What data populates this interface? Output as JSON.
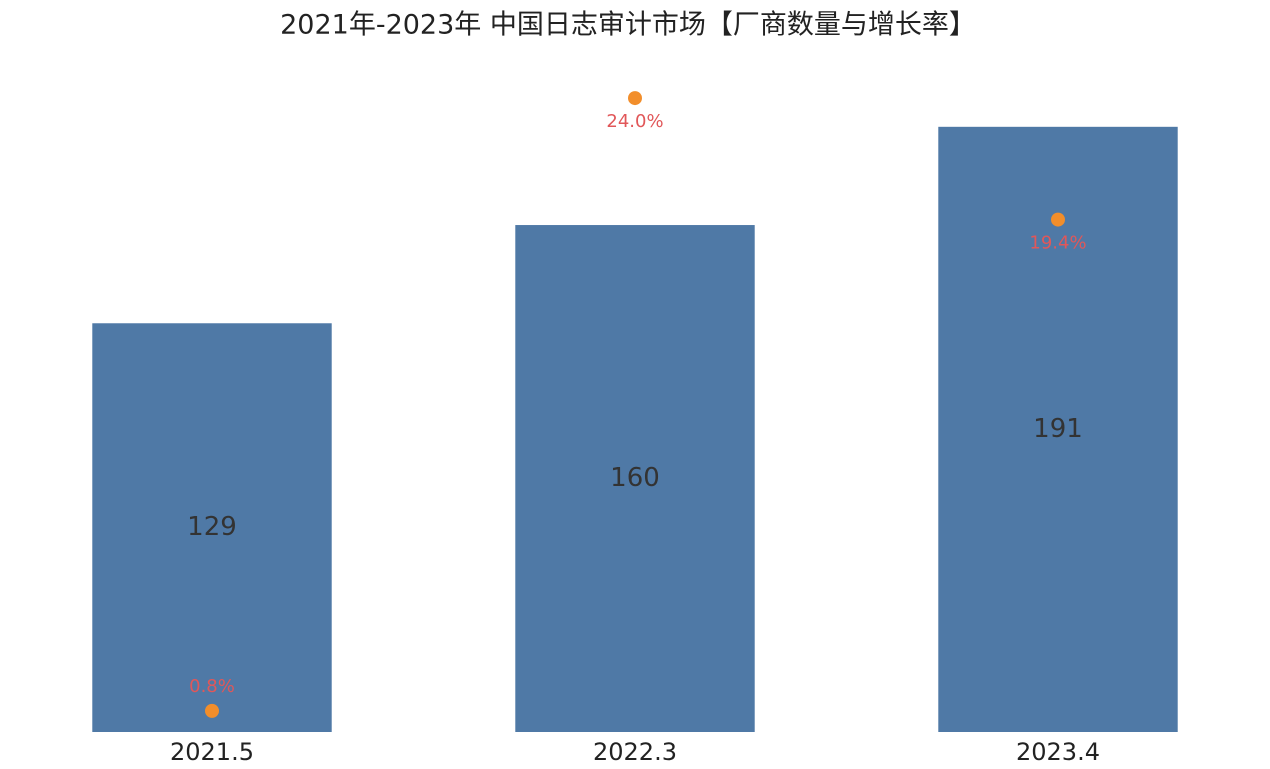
{
  "chart_data": {
    "type": "bar",
    "title": "2021年-2023年 中国日志审计市场【厂商数量与增长率】",
    "categories": [
      "2021.5",
      "2022.3",
      "2023.4"
    ],
    "series": [
      {
        "type": "bar",
        "color": "#4f79a6",
        "values": [
          129,
          160,
          191
        ]
      },
      {
        "type": "scatter",
        "axis": "y2",
        "color": "#f28e2b",
        "label_color": "#e15759",
        "values": [
          0.8,
          24.0,
          19.4
        ],
        "value_labels": [
          "0.8%",
          "24.0%",
          "19.4%"
        ]
      }
    ],
    "ylim": [
      0,
      218.4
    ],
    "y2lim": [
      0,
      26.2
    ]
  }
}
